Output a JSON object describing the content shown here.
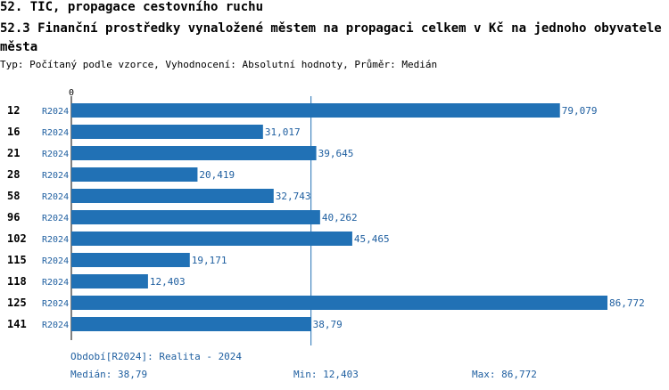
{
  "header": {
    "title_line1": "52. TIC, propagace cestovního ruchu",
    "title_line2": "52.3 Finanční prostředky vynaložené městem na propagaci celkem v Kč na jednoho obyvatele města",
    "subtitle": "Typ: Počítaný podle vzorce, Vyhodnocení: Absolutní hodnoty, Průměr: Medián"
  },
  "chart_data": {
    "type": "bar",
    "orientation": "horizontal",
    "categories": [
      "12",
      "16",
      "21",
      "28",
      "58",
      "96",
      "102",
      "115",
      "118",
      "125",
      "141"
    ],
    "series": [
      {
        "period": "R2024",
        "values": [
          79.079,
          31.017,
          39.645,
          20.419,
          32.743,
          40.262,
          45.465,
          19.171,
          12.403,
          86.772,
          38.79
        ],
        "labels": [
          "79,079",
          "31,017",
          "39,645",
          "20,419",
          "32,743",
          "40,262",
          "45,465",
          "19,171",
          "12,403",
          "86,772",
          "38,79"
        ],
        "color": "#2171b5"
      }
    ],
    "axis_zero_label": "0",
    "median_line": 38.79,
    "xlim": [
      0,
      86.772
    ],
    "grid": false
  },
  "footer": {
    "period_text": "Období[R2024]: Realita - 2024",
    "median_text": "Medián: 38,79",
    "min_text": "Min: 12,403",
    "max_text": "Max: 86,772"
  },
  "colors": {
    "bar": "#2171b5",
    "label_blue": "#1f5fa0",
    "median_line": "#2171b5"
  }
}
